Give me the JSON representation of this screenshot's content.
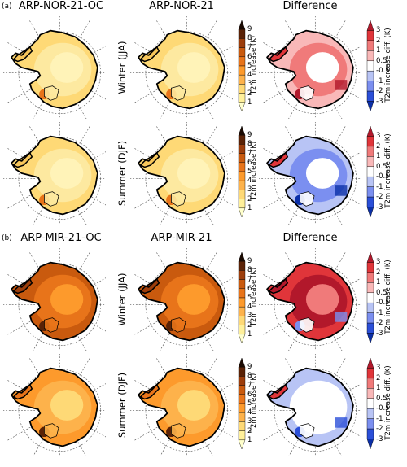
{
  "sections": [
    {
      "label": "(a)",
      "columns": [
        "ARP-NOR-21-OC",
        "ARP-NOR-21",
        "Difference"
      ],
      "rows": [
        {
          "label": "Winter (JJA)",
          "maps": [
            "abs_light",
            "abs_light",
            "diff_warm"
          ]
        },
        {
          "label": "Summer (DJF)",
          "maps": [
            "abs_light",
            "abs_light",
            "diff_cool"
          ]
        }
      ]
    },
    {
      "label": "(b)",
      "columns": [
        "ARP-MIR-21-OC",
        "ARP-MIR-21",
        "Difference"
      ],
      "rows": [
        {
          "label": "Winter (JJA)",
          "maps": [
            "abs_dark",
            "abs_dark",
            "diff_strong_warm"
          ]
        },
        {
          "label": "Summer (DJF)",
          "maps": [
            "abs_mid",
            "abs_mid",
            "diff_cool_partial"
          ]
        }
      ]
    }
  ],
  "chart_data": {
    "type": "heatmap",
    "description": "Antarctic 2 m temperature increase maps (polar stereographic)",
    "abs_colorbar": {
      "label": "T2m increase (K)",
      "ticks": [
        "1",
        "2",
        "3",
        "4",
        "5",
        "6",
        "7",
        "8",
        "9"
      ],
      "colors": [
        "#ffffcc",
        "#fff09a",
        "#fed976",
        "#fdb24b",
        "#fd9a2c",
        "#e8741a",
        "#c95a0e",
        "#9c3d0b",
        "#5a2206",
        "#1b0a02"
      ]
    },
    "diff_colorbar": {
      "label": "T2m increase diff. (K)",
      "ticks": [
        "3",
        "2",
        "1",
        "0.5",
        "-0.5",
        "-1",
        "-2",
        "-3"
      ],
      "colors": [
        "#b2182b",
        "#e0353a",
        "#f07a7a",
        "#f9b8b8",
        "#ffffff",
        "#b8c4f5",
        "#7b8ff0",
        "#2b4fd8",
        "#0b2fa8"
      ]
    }
  }
}
